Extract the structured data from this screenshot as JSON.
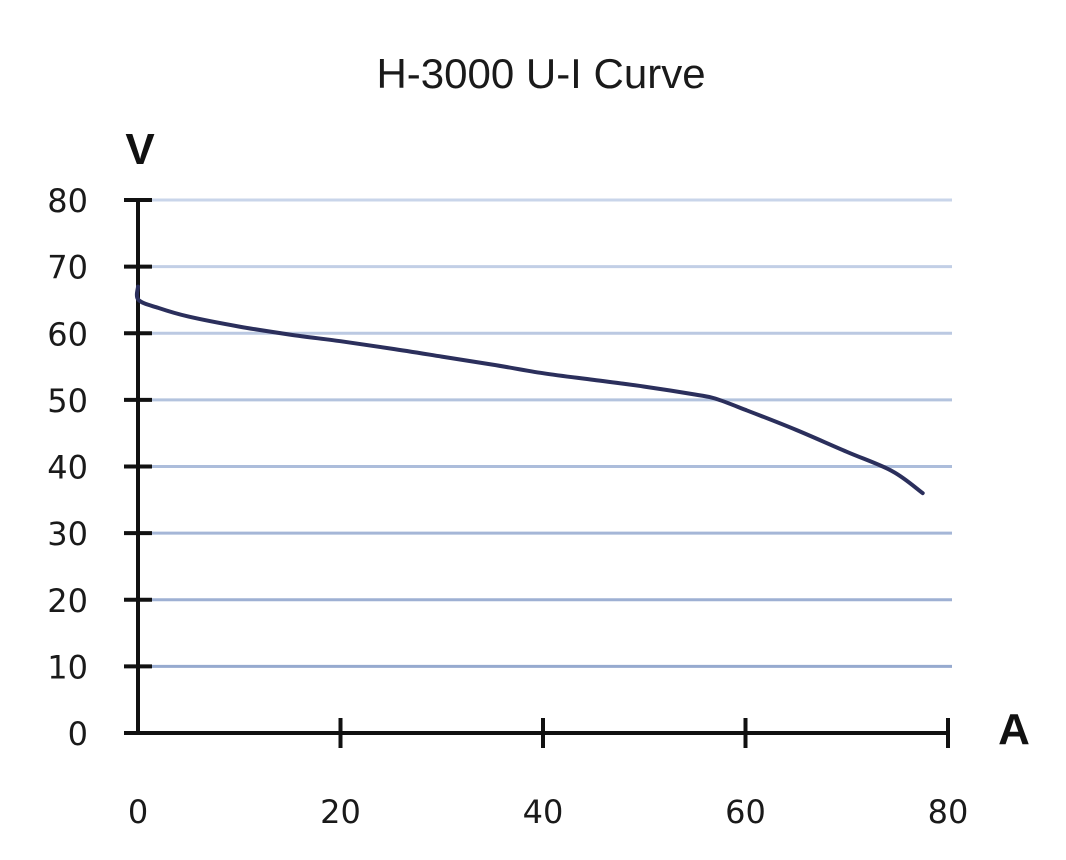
{
  "chart_data": {
    "type": "line",
    "title": "H-3000 U-I Curve",
    "xlabel": "A",
    "ylabel": "V",
    "xlim": [
      0,
      80
    ],
    "ylim": [
      0,
      80
    ],
    "x_ticks": [
      0,
      20,
      40,
      60,
      80
    ],
    "y_ticks": [
      0,
      10,
      20,
      30,
      40,
      50,
      60,
      70,
      80
    ],
    "grid": "horizontal",
    "legend": "none",
    "colors": {
      "line": "#2b2f5c",
      "grid_top": "#c9d5ea",
      "grid_bottom": "#8fa4cb",
      "axis": "#111111"
    },
    "series": [
      {
        "points": [
          [
            0.0,
            67.0
          ],
          [
            0.05,
            65.0
          ],
          [
            2,
            63.8
          ],
          [
            5,
            62.5
          ],
          [
            10,
            61.0
          ],
          [
            15,
            59.8
          ],
          [
            20,
            58.8
          ],
          [
            25,
            57.7
          ],
          [
            30,
            56.5
          ],
          [
            35,
            55.3
          ],
          [
            40,
            54.0
          ],
          [
            45,
            53.0
          ],
          [
            50,
            52.0
          ],
          [
            55,
            50.8
          ],
          [
            57,
            50.2
          ],
          [
            60,
            48.5
          ],
          [
            65,
            45.5
          ],
          [
            70,
            42.2
          ],
          [
            74.5,
            39.3
          ],
          [
            77.5,
            36.0
          ]
        ]
      }
    ]
  }
}
